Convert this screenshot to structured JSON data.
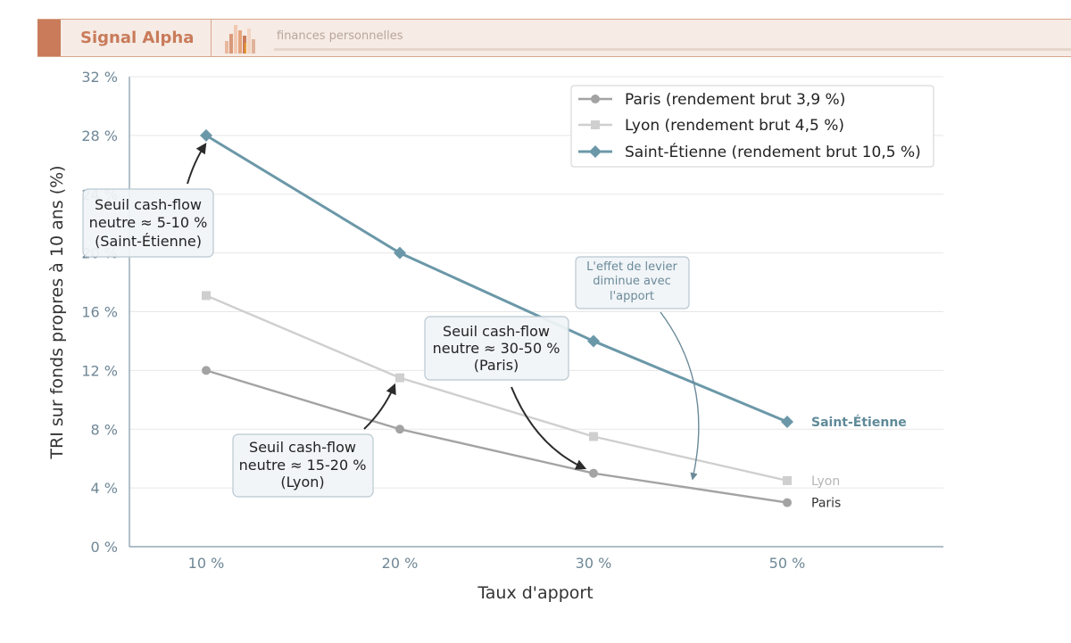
{
  "header": {
    "brand": "Signal Alpha",
    "tagline": "finances personnelles",
    "colors": {
      "brand": "#c97b5a",
      "background": "#f6ebe5"
    }
  },
  "chart_data": {
    "type": "line",
    "xlabel": "Taux d'apport",
    "ylabel": "TRI sur fonds propres à 10 ans (%)",
    "categories": [
      "10 %",
      "20 %",
      "30 %",
      "50 %"
    ],
    "y_ticks": [
      "0 %",
      "4 %",
      "8 %",
      "12 %",
      "16 %",
      "20 %",
      "24 %",
      "28 %",
      "32 %"
    ],
    "ylim": [
      0,
      32
    ],
    "grid": "horizontal",
    "legend_position": "top-right",
    "series": [
      {
        "name": "Paris (rendement brut 3,9 %)",
        "end_label": "Paris",
        "values": [
          12,
          8,
          5,
          3
        ],
        "color": "#a3a3a3",
        "marker": "circle"
      },
      {
        "name": "Lyon (rendement brut 4,5 %)",
        "end_label": "Lyon",
        "values": [
          17.1,
          11.5,
          7.5,
          4.5
        ],
        "color": "#cfcfcf",
        "marker": "square"
      },
      {
        "name": "Saint-Étienne (rendement brut 10,5 %)",
        "end_label": "Saint-Étienne",
        "values": [
          28,
          20,
          14,
          8.5
        ],
        "color": "#6b98a8",
        "marker": "diamond"
      }
    ],
    "annotations": [
      {
        "id": "st",
        "lines": [
          "Seuil cash-flow",
          "neutre ≈ 5-10 %",
          "(Saint-Étienne)"
        ]
      },
      {
        "id": "paris",
        "lines": [
          "Seuil cash-flow",
          "neutre ≈ 30-50 %",
          "(Paris)"
        ]
      },
      {
        "id": "lyon",
        "lines": [
          "Seuil cash-flow",
          "neutre ≈ 15-20 %",
          "(Lyon)"
        ]
      },
      {
        "id": "levier",
        "lines": [
          "L'effet de levier",
          "diminue avec",
          "l'apport"
        ]
      }
    ]
  }
}
